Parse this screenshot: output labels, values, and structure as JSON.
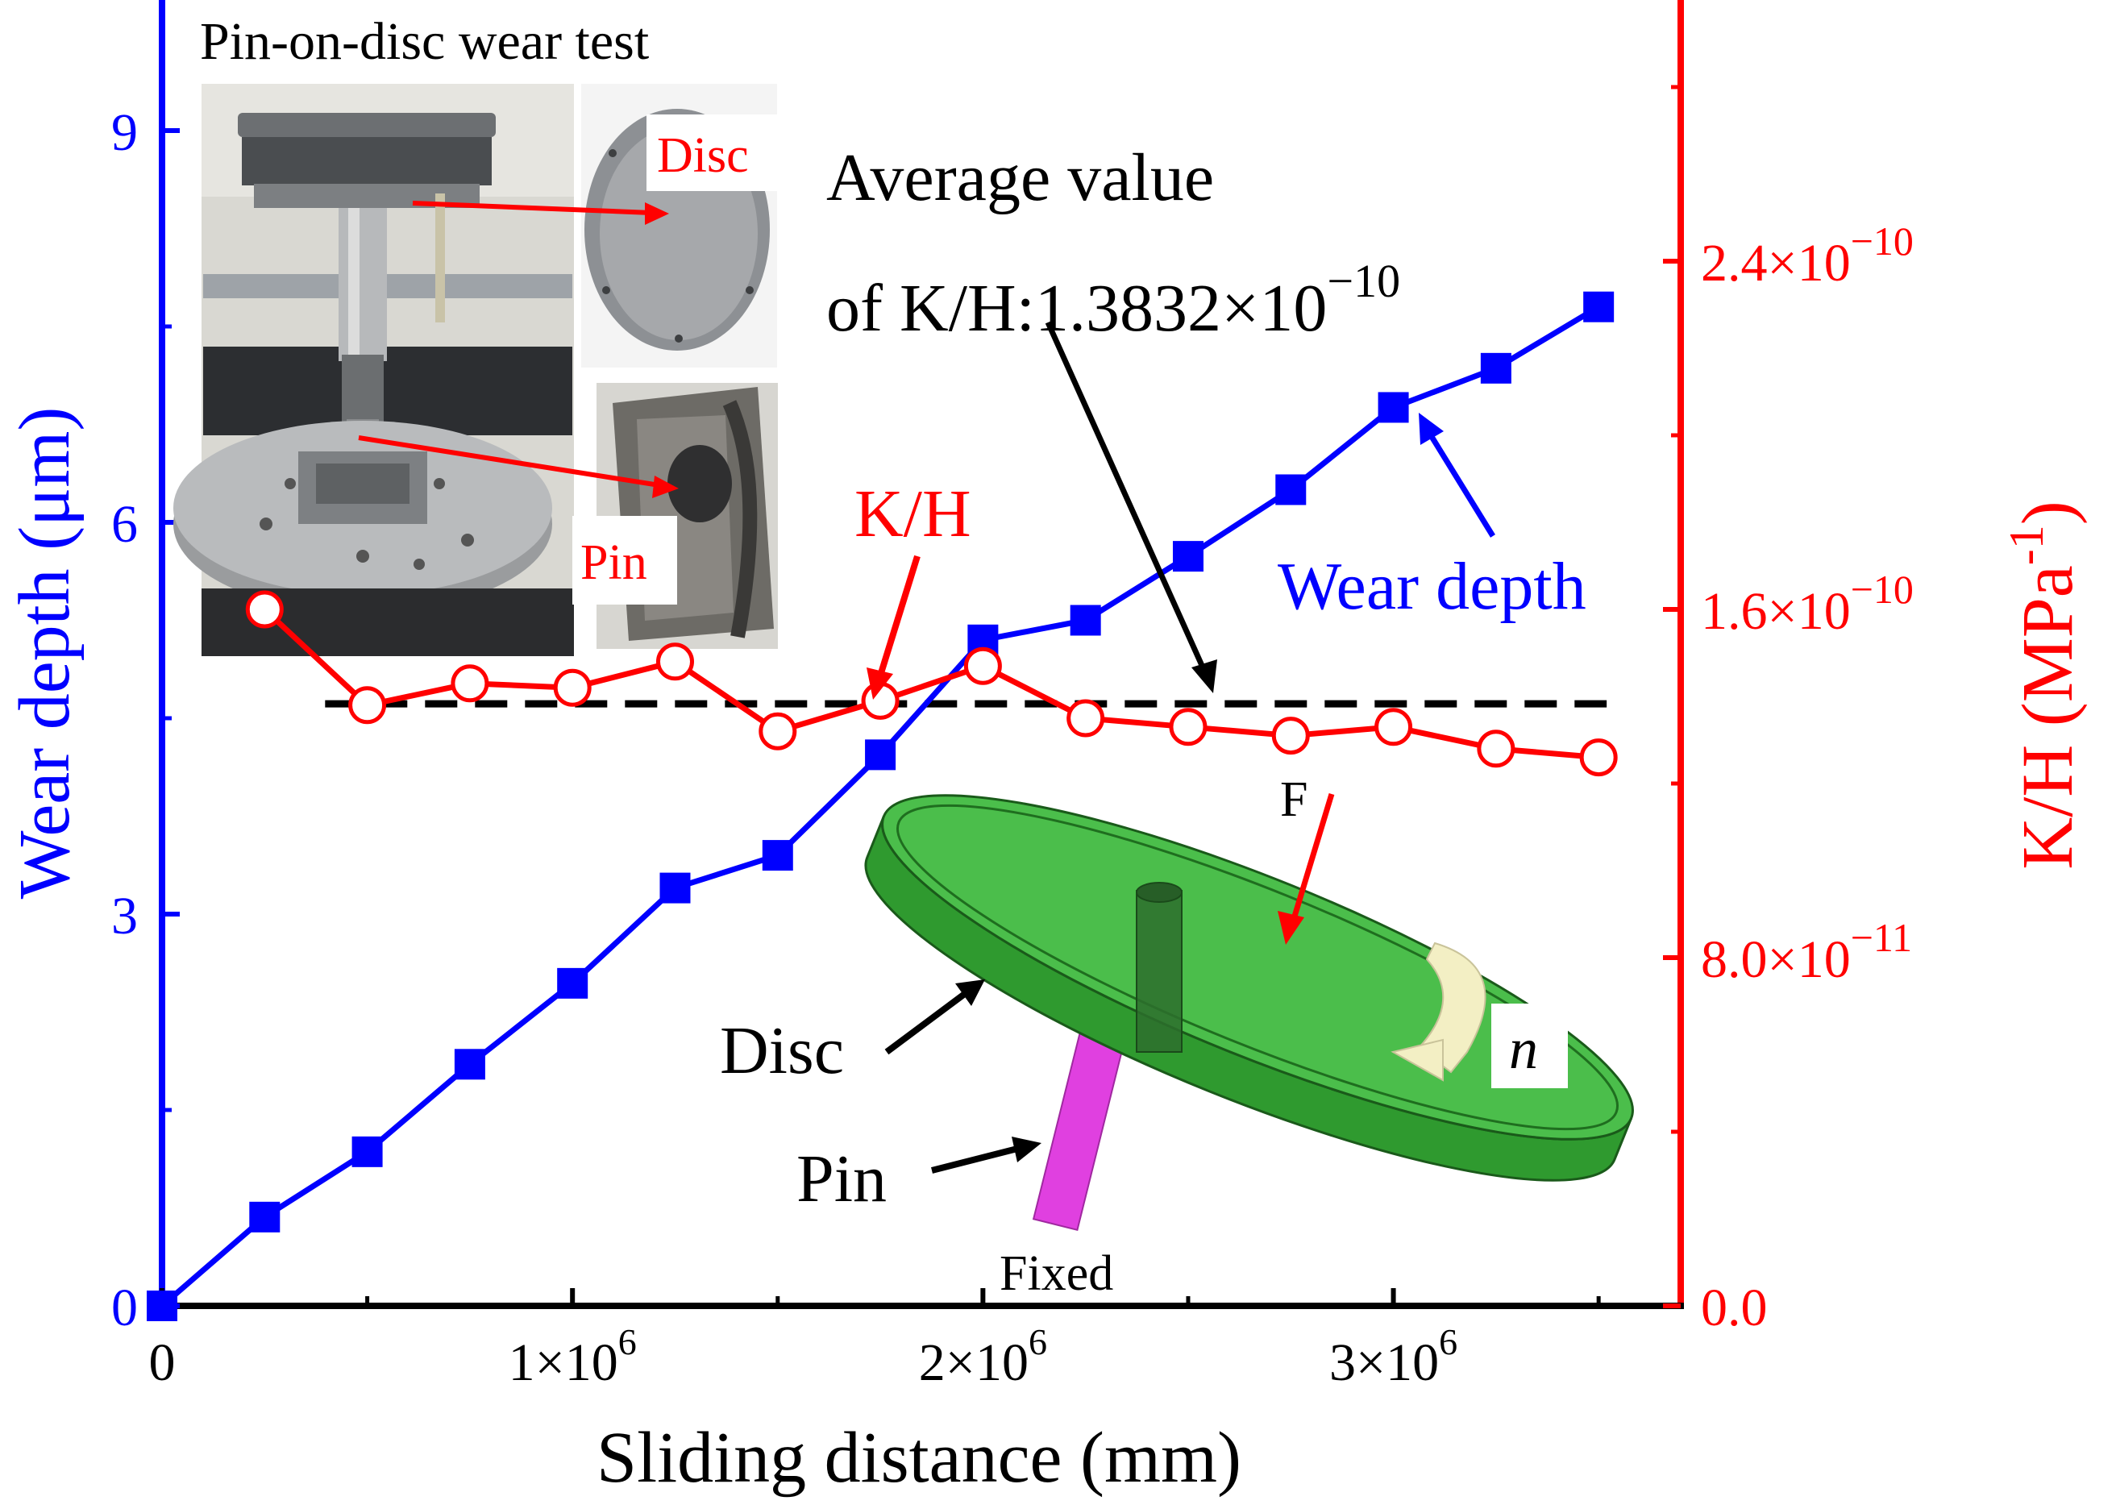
{
  "chart_data": {
    "type": "line",
    "title": "",
    "xlabel": "Sliding distance (mm)",
    "ylabel_left": "Wear depth (μm)",
    "ylabel_right": "K/H (MPa",
    "ylabel_right_sup": "-1",
    "ylabel_right_close": ")",
    "xlim": [
      0,
      3700000
    ],
    "ylim_left": [
      0,
      10
    ],
    "ylim_right": [
      0,
      3e-10
    ],
    "x_ticks": [
      {
        "mant": "0",
        "exp": "",
        "value": 0
      },
      {
        "mant": "1×10",
        "exp": "6",
        "value": 1000000
      },
      {
        "mant": "2×10",
        "exp": "6",
        "value": 2000000
      },
      {
        "mant": "3×10",
        "exp": "6",
        "value": 3000000
      }
    ],
    "y_left_ticks": [
      {
        "label": "0",
        "value": 0
      },
      {
        "label": "3",
        "value": 3
      },
      {
        "label": "6",
        "value": 6
      },
      {
        "label": "9",
        "value": 9
      }
    ],
    "y_right_ticks": [
      {
        "mant": "0.0",
        "exp": "",
        "value": 0
      },
      {
        "mant": "8.0×10",
        "exp": "−11",
        "value": 8e-11
      },
      {
        "mant": "1.6×10",
        "exp": "−10",
        "value": 1.6e-10
      },
      {
        "mant": "2.4×10",
        "exp": "−10",
        "value": 2.4e-10
      }
    ],
    "series": [
      {
        "name": "Wear depth",
        "axis": "left",
        "color": "#0000ff",
        "marker": "filled-square",
        "x": [
          0,
          250000,
          500000,
          750000,
          1000000,
          1250000,
          1500000,
          1750000,
          2000000,
          2250000,
          2500000,
          2750000,
          3000000,
          3250000,
          3500000
        ],
        "values": [
          0,
          0.68,
          1.18,
          1.85,
          2.47,
          3.2,
          3.45,
          4.22,
          5.1,
          5.25,
          5.74,
          6.25,
          6.88,
          7.18,
          7.65
        ]
      },
      {
        "name": "K/H",
        "axis": "right",
        "color": "#ff0000",
        "marker": "open-circle",
        "x": [
          250000,
          500000,
          750000,
          1000000,
          1250000,
          1500000,
          1750000,
          2000000,
          2250000,
          2500000,
          2750000,
          3000000,
          3250000,
          3500000
        ],
        "values": [
          1.6e-10,
          1.38e-10,
          1.43e-10,
          1.42e-10,
          1.48e-10,
          1.32e-10,
          1.39e-10,
          1.47e-10,
          1.35e-10,
          1.33e-10,
          1.31e-10,
          1.33e-10,
          1.28e-10,
          1.26e-10
        ]
      }
    ],
    "average_line": {
      "axis": "right",
      "value": 1.3832e-10,
      "x_start": 250000,
      "x_end": 3500000,
      "color": "#000000",
      "style": "dashed"
    },
    "annotations": {
      "average_line1": "Average value",
      "average_line2_prefix": "of K/H:1.3832×10",
      "average_line2_exp": "−10",
      "kh_label": "K/H",
      "wear_depth_label": "Wear depth",
      "inset_title": "Pin-on-disc wear test",
      "photo_disc": "Disc",
      "photo_pin": "Pin",
      "schematic_force": "F",
      "schematic_rotation": "n",
      "schematic_disc": "Disc",
      "schematic_pin": "Pin",
      "schematic_fixed": "Fixed"
    }
  },
  "colors": {
    "left_axis": "#0000ff",
    "right_axis": "#ff0000",
    "disc_fill": "#3cb93c",
    "pin_fill": "#e040e0",
    "photo_bg": "#8a8d90"
  }
}
